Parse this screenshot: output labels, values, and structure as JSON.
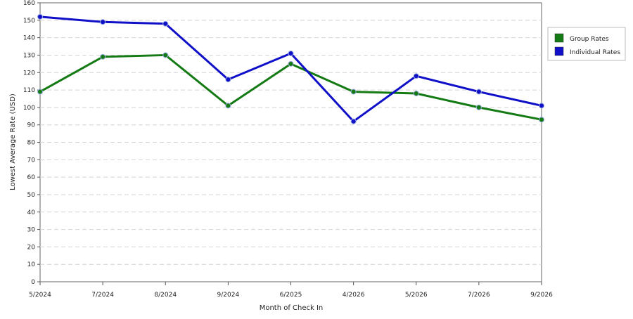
{
  "chart_data": {
    "type": "line",
    "xlabel": "Month of Check In",
    "ylabel": "Lowest Average Rate (USD)",
    "ylim": [
      0,
      160
    ],
    "y_ticks": [
      0,
      10,
      20,
      30,
      40,
      50,
      60,
      70,
      80,
      90,
      100,
      110,
      120,
      130,
      140,
      150,
      160
    ],
    "categories": [
      "5/2024",
      "7/2024",
      "8/2024",
      "9/2024",
      "6/2025",
      "4/2026",
      "5/2026",
      "7/2026",
      "9/2026"
    ],
    "grid": "horizontal dashed",
    "legend_position": "right",
    "series": [
      {
        "name": "Group Rates",
        "color": "#147a14",
        "values": [
          109,
          129,
          130,
          101,
          125,
          109,
          108,
          100,
          93
        ]
      },
      {
        "name": "Individual Rates",
        "color": "#1010c8",
        "values": [
          152,
          149,
          148,
          116,
          131,
          92,
          118,
          109,
          101
        ]
      }
    ]
  }
}
